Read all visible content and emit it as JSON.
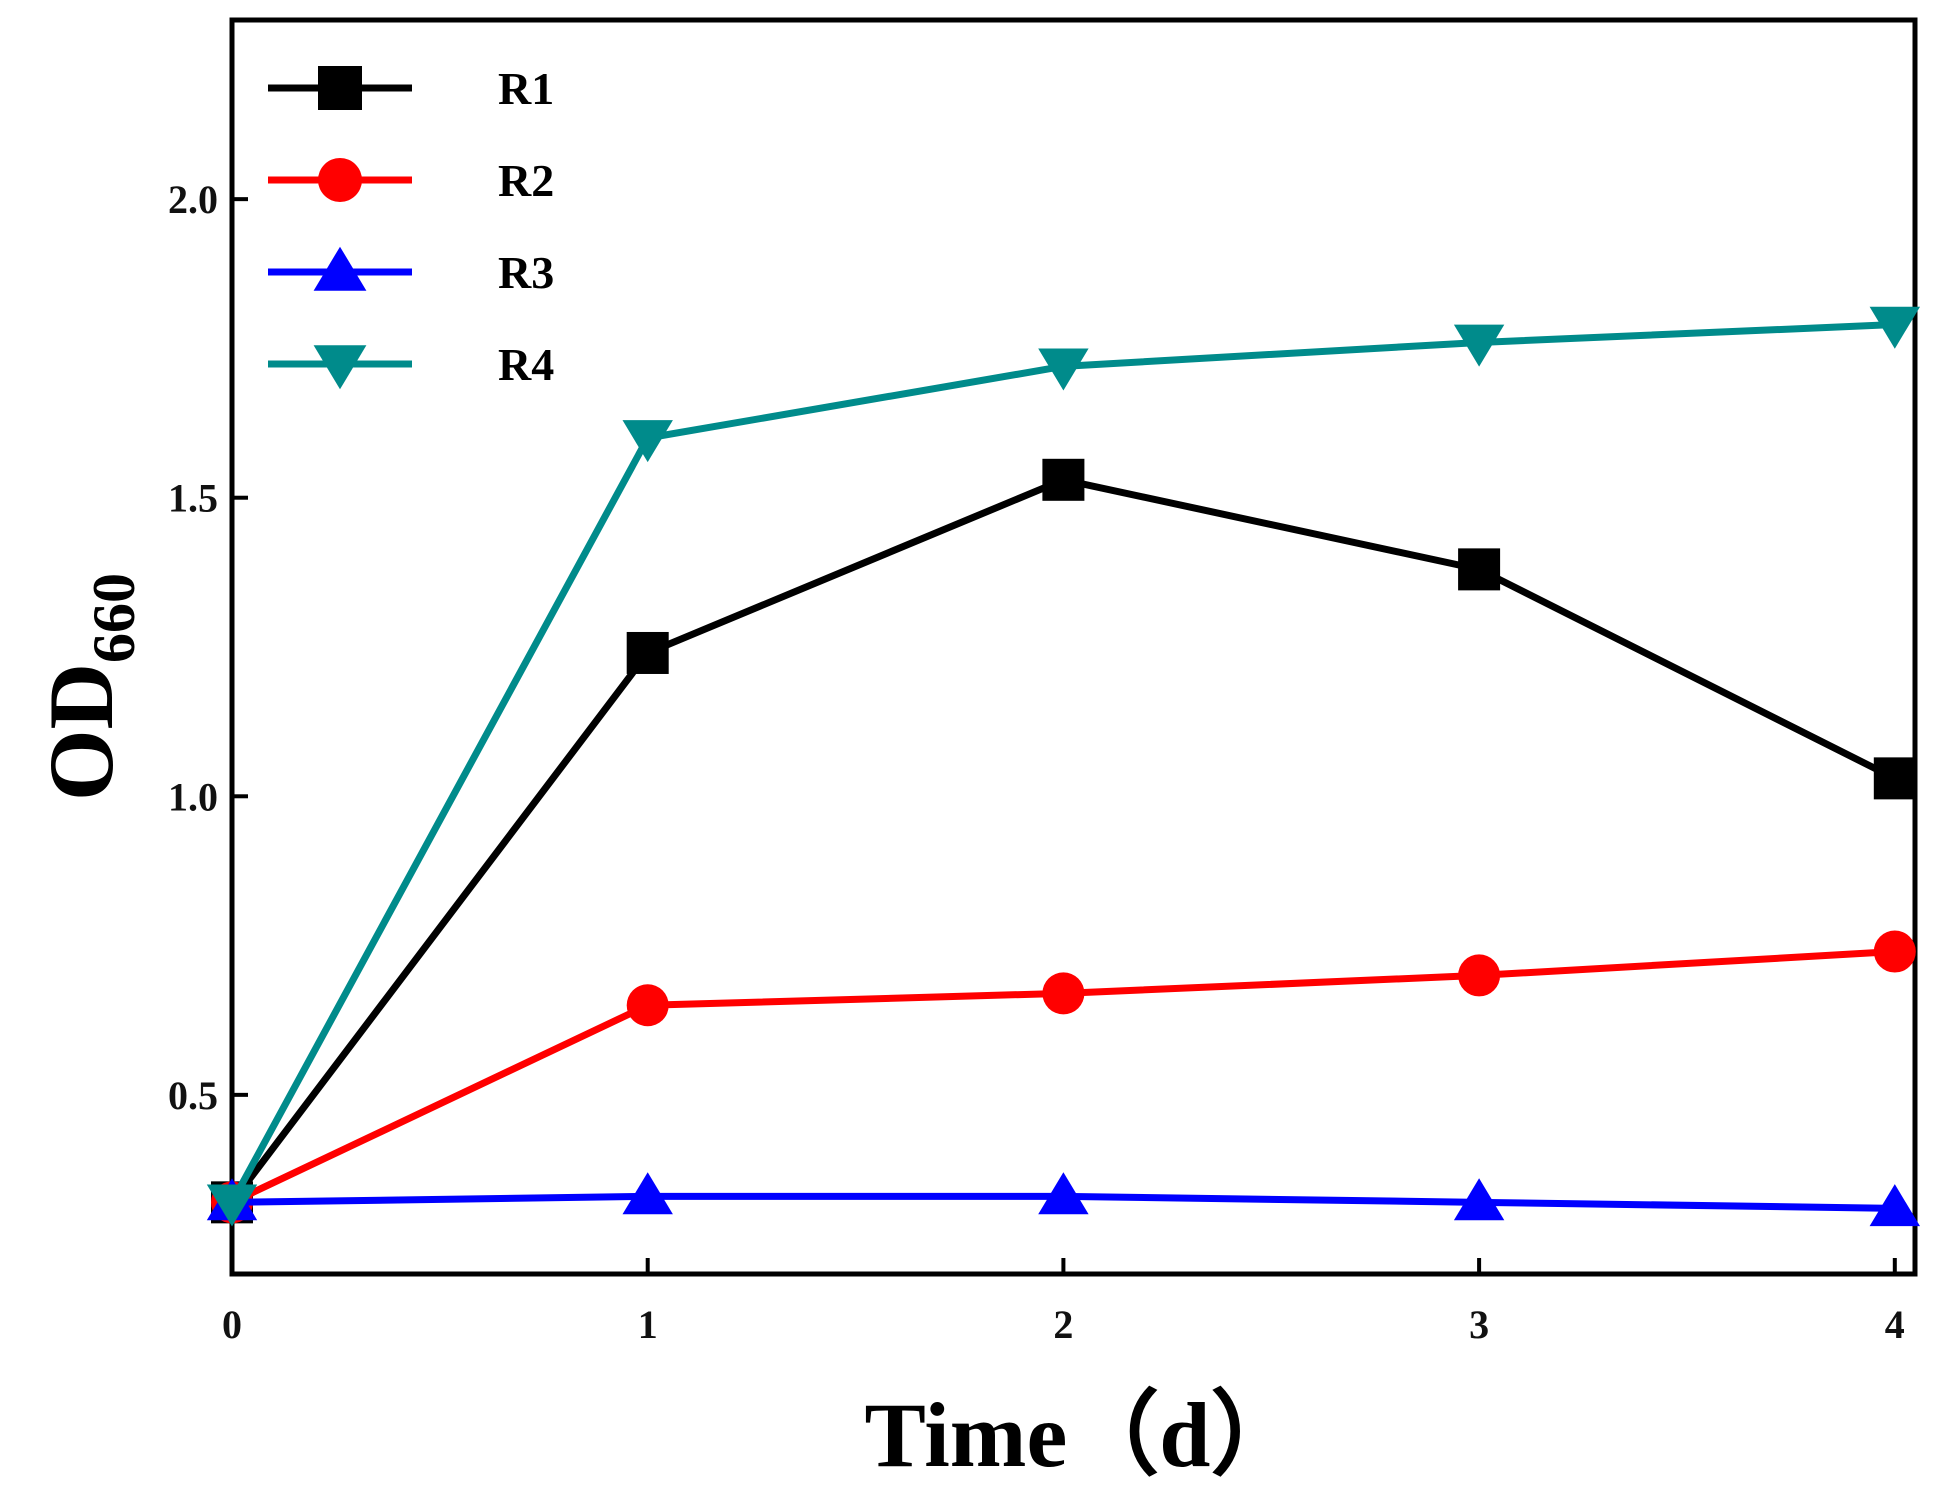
{
  "chart_data": {
    "type": "line",
    "xlabel": "Time（d）",
    "ylabel_main": "OD",
    "ylabel_sub": "660",
    "x": [
      0,
      1,
      2,
      3,
      4
    ],
    "xticks": [
      "0",
      "1",
      "2",
      "3",
      "4"
    ],
    "yticks": [
      "0.5",
      "1.0",
      "1.5",
      "2.0"
    ],
    "ytick_values": [
      0.5,
      1.0,
      1.5,
      2.0
    ],
    "xlim": [
      0,
      4
    ],
    "ylim": [
      0.2,
      2.3
    ],
    "grid": false,
    "legend_position": "top-left",
    "series": [
      {
        "name": "R1",
        "color": "#000000",
        "marker": "square",
        "values": [
          0.32,
          1.24,
          1.53,
          1.38,
          1.03
        ]
      },
      {
        "name": "R2",
        "color": "#ff0000",
        "marker": "circle",
        "values": [
          0.32,
          0.65,
          0.67,
          0.7,
          0.74
        ]
      },
      {
        "name": "R3",
        "color": "#0000ff",
        "marker": "triangle-up",
        "values": [
          0.32,
          0.33,
          0.33,
          0.32,
          0.31
        ]
      },
      {
        "name": "R4",
        "color": "#008b8b",
        "marker": "triangle-down",
        "values": [
          0.32,
          1.6,
          1.72,
          1.76,
          1.79
        ]
      }
    ]
  }
}
